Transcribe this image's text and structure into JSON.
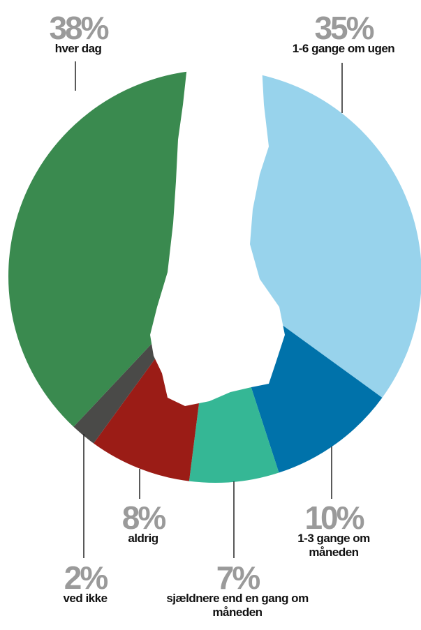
{
  "chart_data": {
    "type": "pie",
    "categories": [
      "1-6 gange om ugen",
      "1-3 gange om måneden",
      "sjældnere end en gang om måneden",
      "aldrig",
      "ved ikke",
      "hver dag"
    ],
    "values": [
      35,
      10,
      7,
      8,
      2,
      38
    ],
    "value_labels": [
      "35%",
      "10%",
      "7%",
      "8%",
      "2%",
      "38%"
    ],
    "colors": [
      "#98d3ec",
      "#0072aa",
      "#35b795",
      "#9b1c16",
      "#4a4a48",
      "#3a8a4f"
    ]
  }
}
